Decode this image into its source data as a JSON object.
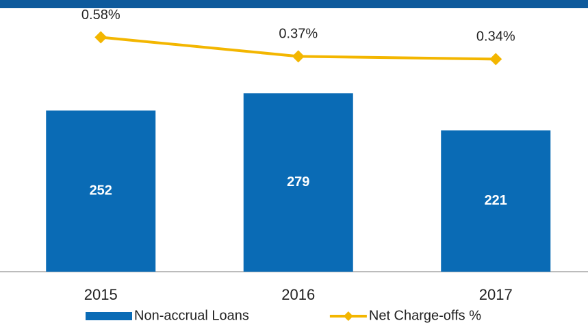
{
  "chart_data": {
    "type": "bar",
    "categories": [
      "2015",
      "2016",
      "2017"
    ],
    "series": [
      {
        "name": "Non-accrual Loans",
        "type": "bar",
        "color": "#0a6bb5",
        "values": [
          252,
          279,
          221
        ]
      },
      {
        "name": "Net Charge-offs %",
        "type": "line",
        "axis": "y2",
        "color": "#f3b600",
        "values": [
          0.58,
          0.37,
          0.34
        ],
        "value_labels": [
          "0.58%",
          "0.37%",
          "0.34%"
        ]
      }
    ],
    "ylim": [
      0,
      412
    ],
    "y2lim": [
      -2.0,
      0.9
    ],
    "legend": "bottom"
  }
}
